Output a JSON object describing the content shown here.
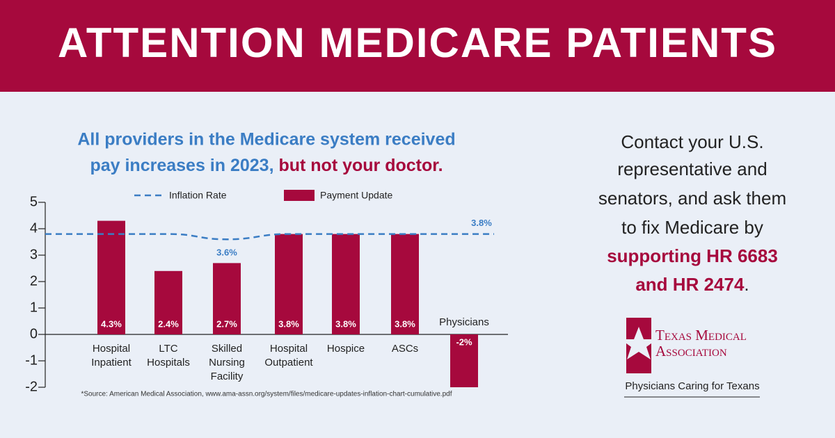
{
  "header": {
    "title": "ATTENTION MEDICARE PATIENTS"
  },
  "chart_data": {
    "type": "bar",
    "subtitle": [
      "All providers in the Medicare system received",
      "pay increases in 2023,",
      " but not your doctor."
    ],
    "categories": [
      "Hospital Inpatient",
      "LTC Hospitals",
      "Skilled Nursing Facility",
      "Hospital Outpatient",
      "Hospice",
      "ASCs",
      "Physicians"
    ],
    "series": [
      {
        "name": "Inflation Rate",
        "type": "line",
        "dashed": true,
        "color": "#3b7dc4",
        "values": [
          3.8,
          3.8,
          3.6,
          3.8,
          3.8,
          3.8,
          3.8
        ],
        "value_labels": [
          null,
          null,
          "3.6%",
          null,
          null,
          null,
          "3.8%"
        ]
      },
      {
        "name": "Payment Update",
        "type": "bar",
        "color": "#a6093d",
        "values": [
          4.3,
          2.4,
          2.7,
          3.8,
          3.8,
          3.8,
          -2
        ],
        "value_labels": [
          "4.3%",
          "2.4%",
          "2.7%",
          "3.8%",
          "3.8%",
          "3.8%",
          "-2%"
        ]
      }
    ],
    "ylim": [
      -2,
      5
    ],
    "yticks": [
      -2,
      -1,
      0,
      1,
      2,
      3,
      4,
      5
    ],
    "source": "*Source: American Medical Association, www.ama-assn.org/system/files/medicare-updates-inflation-chart-cumulative.pdf"
  },
  "cta": {
    "lines": [
      "Contact your U.S.",
      "representative and",
      "senators, and ask them",
      "to fix Medicare by"
    ],
    "emphasis": [
      "supporting HR 6683",
      "and HR 2474"
    ],
    "end": "."
  },
  "logo": {
    "name_lines": [
      "Texas Medical",
      "Association"
    ],
    "tagline": "Physicians Caring for Texans"
  }
}
